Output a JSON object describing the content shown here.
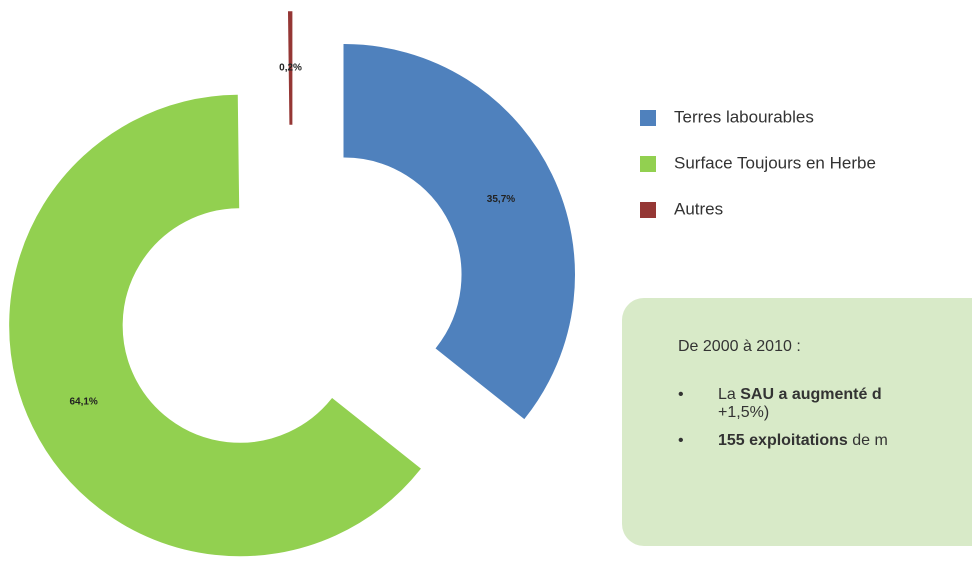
{
  "chart_data": {
    "type": "donut",
    "categories": [
      "Terres labourables",
      "Surface Toujours en Herbe",
      "Autres"
    ],
    "values": [
      35.7,
      64.1,
      0.2
    ],
    "value_labels": [
      "35,7%",
      "64,1%",
      "0,2%"
    ],
    "colors": [
      "#4f81bd",
      "#92d050",
      "#953735"
    ],
    "legend": "right"
  },
  "note": {
    "heading": "De 2000 à 2010 :",
    "items": [
      {
        "prefix": "La ",
        "bold": "SAU a augmenté d",
        "rest": "+1,5%)"
      },
      {
        "bold": "155 exploitations",
        "rest": " de m"
      }
    ]
  }
}
